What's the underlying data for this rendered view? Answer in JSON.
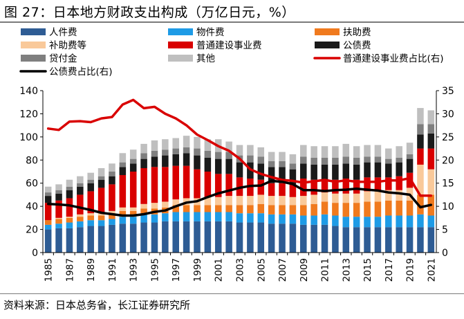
{
  "title": "图 27：日本地方财政支出构成（万亿日元，%）",
  "source": "资料来源：日本总务省，长江证券研究所",
  "chart_data": {
    "type": "bar",
    "stacked": true,
    "categories": [
      "1985",
      "1986",
      "1987",
      "1988",
      "1989",
      "1990",
      "1991",
      "1992",
      "1993",
      "1994",
      "1995",
      "1996",
      "1997",
      "1998",
      "1999",
      "2000",
      "2001",
      "2002",
      "2003",
      "2004",
      "2005",
      "2006",
      "2007",
      "2008",
      "2009",
      "2010",
      "2011",
      "2012",
      "2013",
      "2014",
      "2015",
      "2016",
      "2017",
      "2018",
      "2019",
      "2020",
      "2021"
    ],
    "x_tick_labels": [
      "1985",
      "1987",
      "1989",
      "1991",
      "1993",
      "1995",
      "1997",
      "1999",
      "2001",
      "2003",
      "2005",
      "2007",
      "2009",
      "2011",
      "2013",
      "2015",
      "2017",
      "2019",
      "2021"
    ],
    "y_left": {
      "min": 0,
      "max": 140,
      "ticks": [
        0,
        20,
        40,
        60,
        80,
        100,
        120,
        140
      ]
    },
    "y_right": {
      "min": 0,
      "max": 35,
      "ticks": [
        0,
        5,
        10,
        15,
        20,
        25,
        30,
        35
      ]
    },
    "series": [
      {
        "name": "人件费",
        "color": "#2e5c94",
        "values": [
          20,
          21,
          21,
          22,
          23,
          23,
          24,
          25,
          25,
          26,
          26,
          27,
          27,
          27,
          27,
          27,
          27,
          27,
          26,
          26,
          26,
          25,
          25,
          25,
          24,
          24,
          24,
          23,
          22,
          22,
          22,
          22,
          22,
          22,
          22,
          22,
          22
        ]
      },
      {
        "name": "物件费",
        "color": "#1e9be6",
        "values": [
          4,
          4,
          5,
          5,
          5,
          5,
          5,
          6,
          6,
          7,
          7,
          7,
          8,
          8,
          8,
          8,
          8,
          8,
          8,
          8,
          8,
          8,
          8,
          8,
          8,
          8,
          9,
          9,
          9,
          9,
          9,
          9,
          10,
          10,
          10,
          11,
          10
        ]
      },
      {
        "name": "扶助费",
        "color": "#f07a1e",
        "values": [
          4,
          4,
          4,
          4,
          4,
          4,
          4,
          5,
          5,
          5,
          5,
          5,
          6,
          6,
          6,
          6,
          6,
          6,
          7,
          7,
          8,
          8,
          8,
          8,
          9,
          10,
          11,
          11,
          12,
          12,
          13,
          13,
          13,
          13,
          13,
          17,
          18
        ]
      },
      {
        "name": "补助费等",
        "color": "#f9c99a",
        "values": [
          0,
          1,
          1,
          2,
          2,
          3,
          3,
          3,
          3,
          4,
          5,
          5,
          5,
          6,
          6,
          7,
          7,
          8,
          8,
          8,
          8,
          8,
          8,
          7,
          8,
          8,
          8,
          8,
          8,
          8,
          9,
          9,
          9,
          9,
          11,
          26,
          22
        ]
      },
      {
        "name": "普通建设事业费",
        "color": "#d90000",
        "values": [
          15,
          15,
          16,
          17,
          19,
          21,
          23,
          28,
          31,
          31,
          31,
          30,
          29,
          28,
          25,
          22,
          20,
          19,
          16,
          15,
          13,
          11,
          11,
          11,
          15,
          13,
          11,
          12,
          13,
          12,
          12,
          12,
          11,
          12,
          13,
          14,
          18
        ]
      },
      {
        "name": "公债费",
        "color": "#1a1a1a",
        "values": [
          6,
          6,
          7,
          7,
          7,
          7,
          7,
          7,
          7,
          8,
          9,
          10,
          10,
          11,
          12,
          12,
          13,
          13,
          13,
          14,
          14,
          14,
          14,
          13,
          13,
          13,
          13,
          13,
          13,
          13,
          13,
          13,
          12,
          12,
          12,
          12,
          13
        ]
      },
      {
        "name": "贷付金",
        "color": "#7f7f7f",
        "values": [
          3,
          3,
          3,
          3,
          3,
          3,
          4,
          4,
          4,
          5,
          5,
          5,
          5,
          5,
          6,
          6,
          6,
          6,
          6,
          6,
          6,
          5,
          5,
          5,
          6,
          6,
          6,
          6,
          6,
          6,
          5,
          5,
          4,
          4,
          4,
          9,
          8
        ]
      },
      {
        "name": "其他",
        "color": "#bfbfbf",
        "values": [
          5,
          5,
          6,
          6,
          6,
          7,
          7,
          8,
          8,
          8,
          9,
          9,
          9,
          10,
          10,
          10,
          11,
          9,
          9,
          9,
          8,
          8,
          8,
          8,
          10,
          10,
          10,
          10,
          11,
          10,
          10,
          10,
          9,
          10,
          10,
          14,
          12
        ]
      }
    ],
    "lines": [
      {
        "name": "普通建设事业费占比(右)",
        "color": "#d90000",
        "axis": "right",
        "values": [
          26.8,
          26.5,
          28.3,
          28.4,
          28.2,
          29.0,
          29.3,
          32.0,
          33.0,
          31.2,
          31.5,
          30.0,
          29.0,
          27.5,
          25.5,
          24.3,
          23.0,
          22.0,
          20.3,
          18.0,
          17.0,
          16.3,
          15.7,
          15.5,
          15.1,
          15.4,
          15.7,
          15.3,
          15.6,
          15.3,
          15.3,
          15.3,
          15.6,
          15.6,
          16.1,
          12.3,
          12.3
        ]
      },
      {
        "name": "公债费占比(右)",
        "color": "#000000",
        "axis": "right",
        "values": [
          10.5,
          10.4,
          10.2,
          9.7,
          9.2,
          8.6,
          8.3,
          8.0,
          8.0,
          8.3,
          8.8,
          9.1,
          10.0,
          10.8,
          11.1,
          12.0,
          12.8,
          13.4,
          14.0,
          14.4,
          14.5,
          15.5,
          15.3,
          14.8,
          13.5,
          13.5,
          13.3,
          13.5,
          13.6,
          13.8,
          13.6,
          13.4,
          13.0,
          12.8,
          12.5,
          9.8,
          10.3
        ]
      }
    ],
    "legend": {
      "placement": "top",
      "entries": [
        {
          "label": "人件费",
          "kind": "bar",
          "color": "#2e5c94"
        },
        {
          "label": "物件费",
          "kind": "bar",
          "color": "#1e9be6"
        },
        {
          "label": "扶助费",
          "kind": "bar",
          "color": "#f07a1e"
        },
        {
          "label": "补助费等",
          "kind": "bar",
          "color": "#f9c99a"
        },
        {
          "label": "普通建设事业费",
          "kind": "bar",
          "color": "#d90000"
        },
        {
          "label": "公债费",
          "kind": "bar",
          "color": "#1a1a1a"
        },
        {
          "label": "贷付金",
          "kind": "bar",
          "color": "#7f7f7f"
        },
        {
          "label": "其他",
          "kind": "bar",
          "color": "#bfbfbf"
        },
        {
          "label": "普通建设事业费占比(右)",
          "kind": "line",
          "color": "#d90000"
        },
        {
          "label": "公债费占比(右)",
          "kind": "line",
          "color": "#000000"
        }
      ]
    }
  }
}
